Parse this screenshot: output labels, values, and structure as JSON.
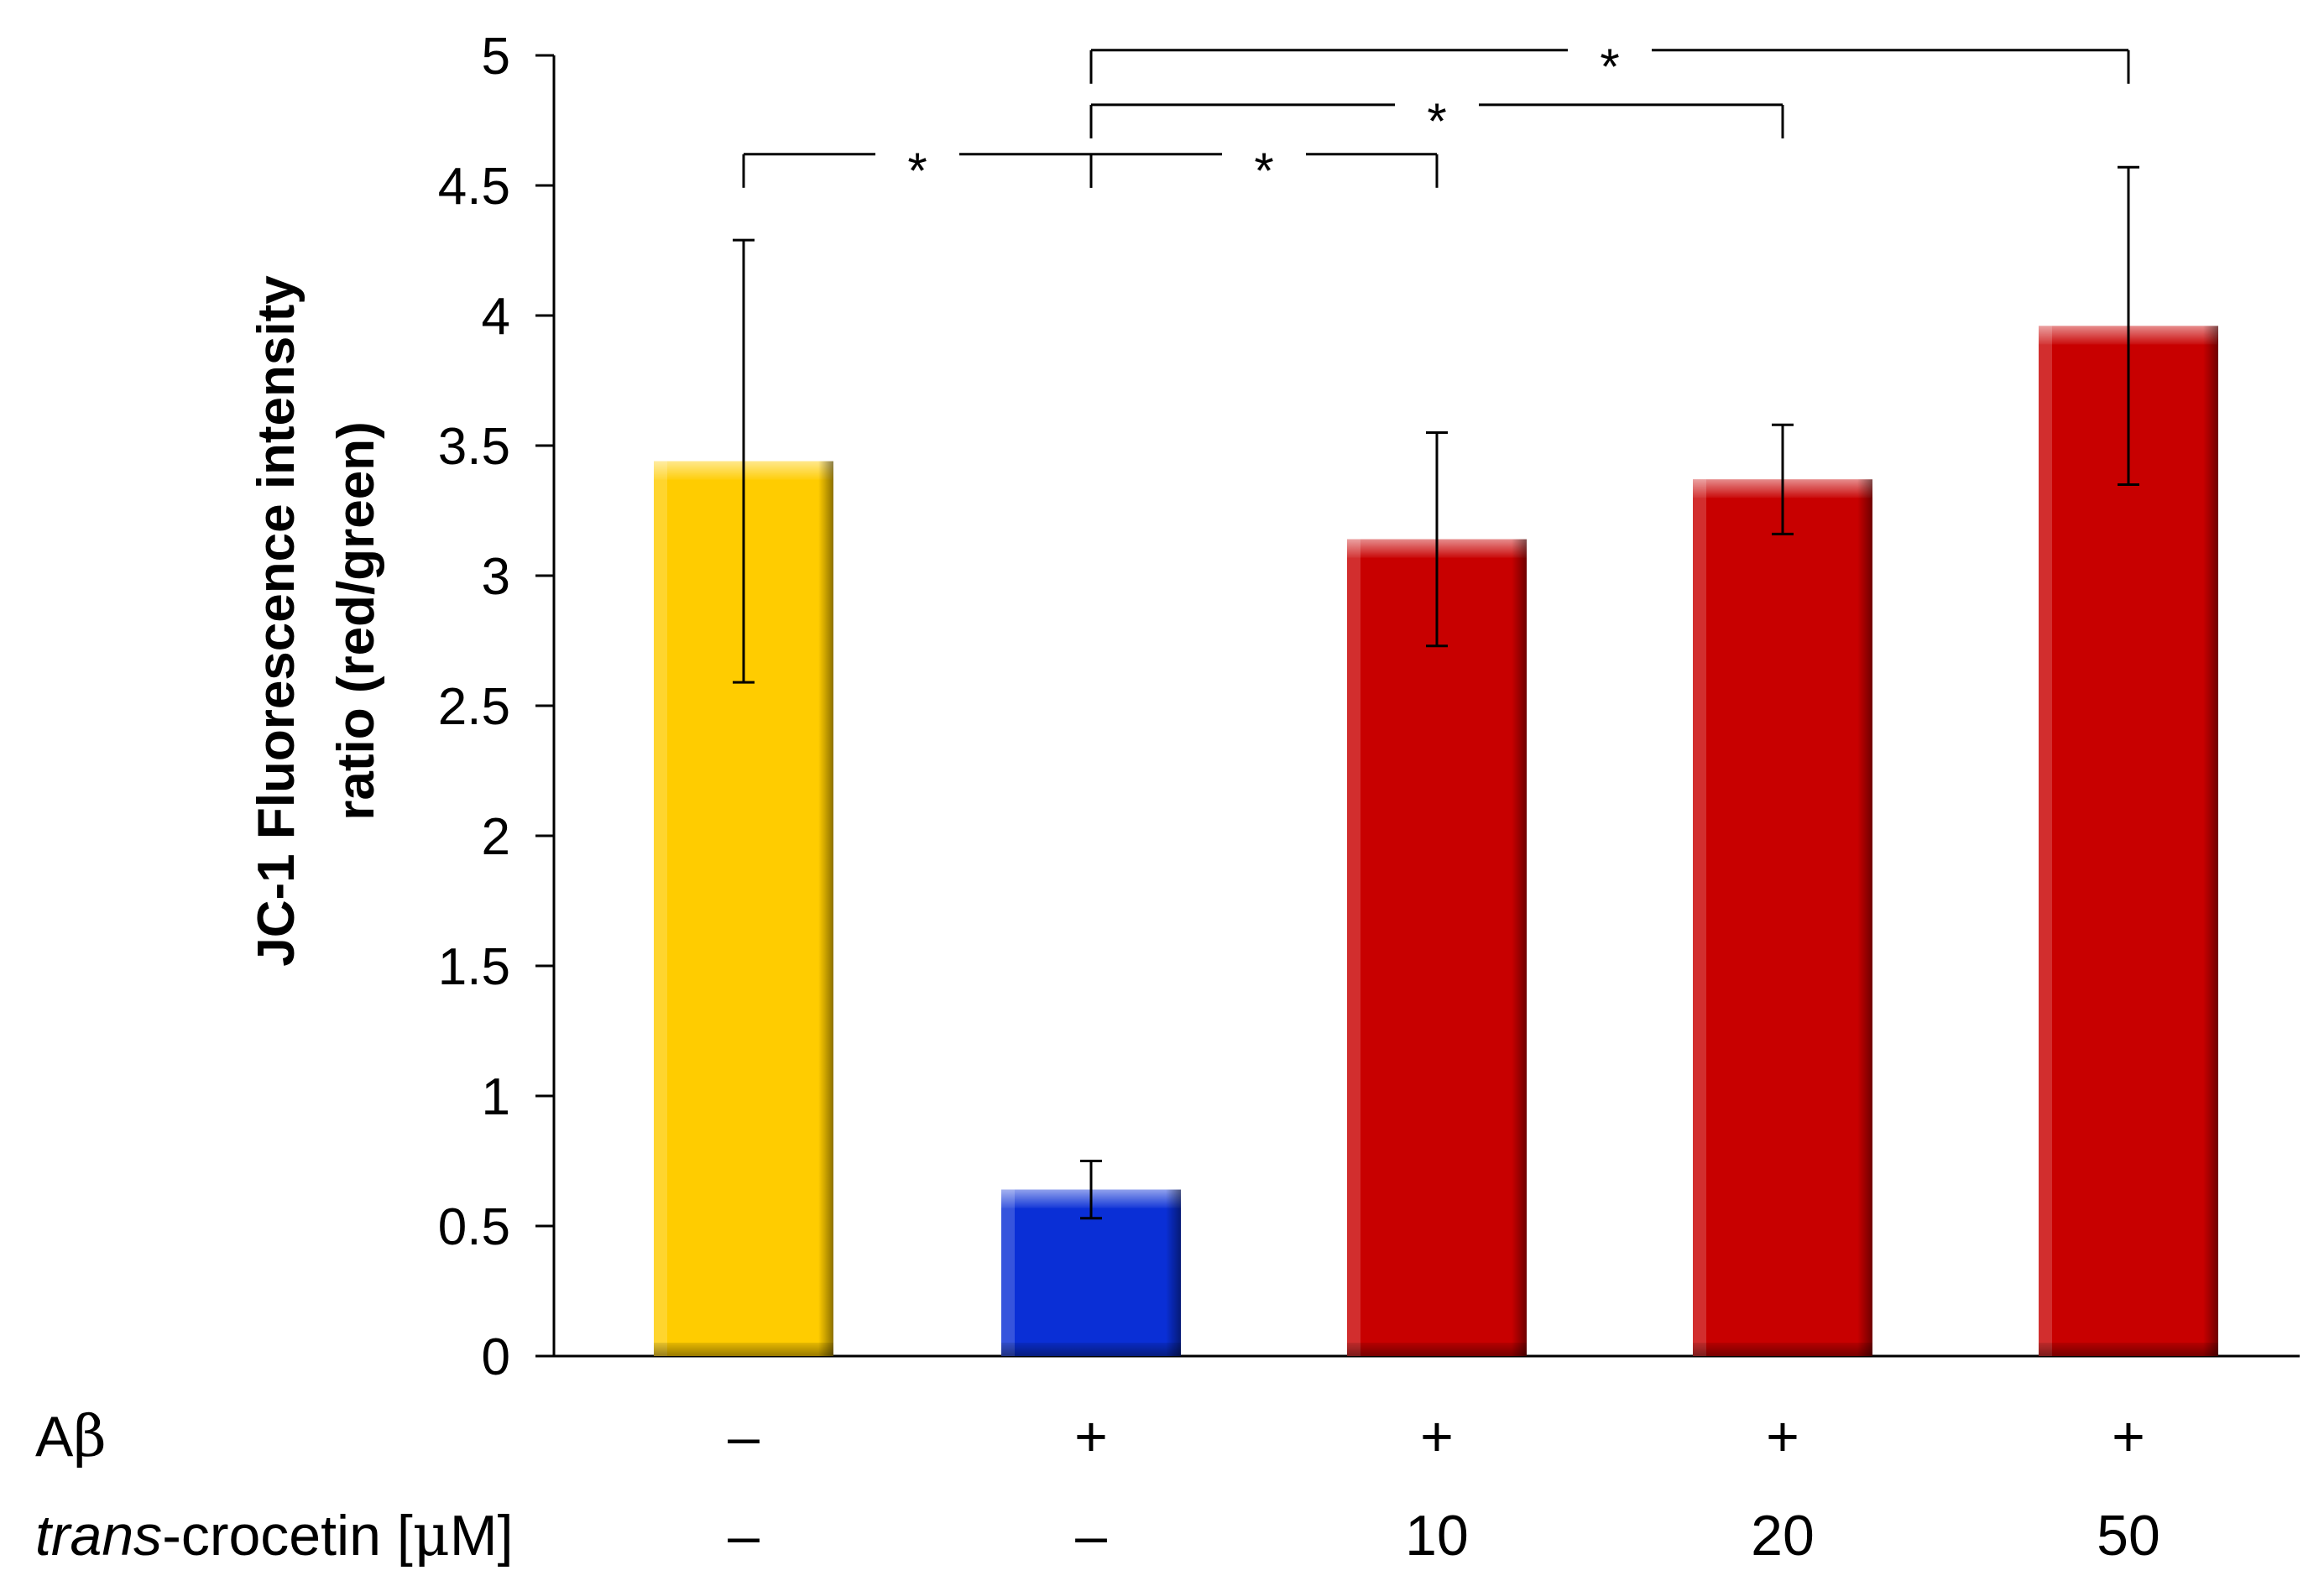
{
  "chart_data": {
    "type": "bar",
    "title": "",
    "xlabel": "",
    "ylabel_line1": "JC-1 Fluorescence intensity",
    "ylabel_line2": "ratio (red/green)",
    "ylim": [
      0,
      5
    ],
    "yticks": [
      0,
      0.5,
      1,
      1.5,
      2,
      2.5,
      3,
      3.5,
      4,
      4.5,
      5
    ],
    "ytick_labels": [
      "0",
      "0.5",
      "1",
      "1.5",
      "2",
      "2.5",
      "3",
      "3.5",
      "4",
      "4.5",
      "5"
    ],
    "grid": false,
    "values": [
      3.44,
      0.64,
      3.14,
      3.37,
      3.96
    ],
    "errors": [
      0.85,
      0.11,
      0.41,
      0.21,
      0.61
    ],
    "colors": [
      "#ffcc00",
      "#0a2fd6",
      "#c80000",
      "#c80000",
      "#c80000"
    ],
    "condition_rows": [
      {
        "label_italic": "",
        "label": "A",
        "label_symbol": "β",
        "label_suffix": "",
        "values": [
          "–",
          "+",
          "+",
          "+",
          "+"
        ]
      },
      {
        "label_italic": "trans",
        "label": "-crocetin [",
        "label_symbol": "μ",
        "label_suffix": "M]",
        "values": [
          "–",
          "–",
          "10",
          "20",
          "50"
        ]
      }
    ],
    "significance": [
      {
        "from": 0,
        "to": 1,
        "label": "*",
        "level": 4.62
      },
      {
        "from": 1,
        "to": 2,
        "label": "*",
        "level": 4.62
      },
      {
        "from": 1,
        "to": 3,
        "label": "*",
        "level": 4.81
      },
      {
        "from": 1,
        "to": 4,
        "label": "*",
        "level": 5.02
      }
    ]
  }
}
